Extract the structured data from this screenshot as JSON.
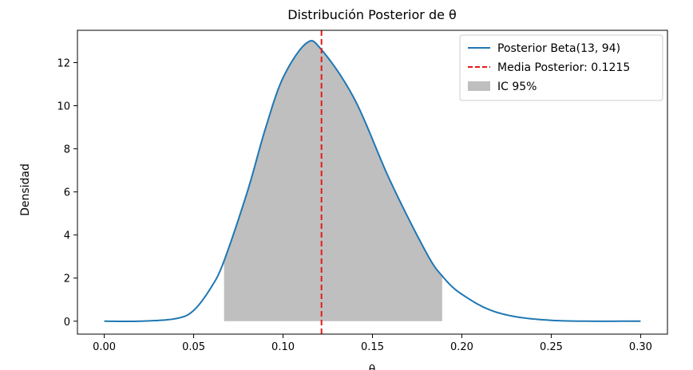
{
  "chart_data": {
    "type": "line",
    "title": "Distribución Posterior de θ",
    "xlabel": "θ",
    "ylabel": "Densidad",
    "xlim": [
      -0.015,
      0.315
    ],
    "ylim": [
      -0.6,
      13.5
    ],
    "xticks": [
      0.0,
      0.05,
      0.1,
      0.15,
      0.2,
      0.25,
      0.3
    ],
    "xtick_labels": [
      "0.00",
      "0.05",
      "0.10",
      "0.15",
      "0.20",
      "0.25",
      "0.30"
    ],
    "yticks": [
      0,
      2,
      4,
      6,
      8,
      10,
      12
    ],
    "ytick_labels": [
      "0",
      "2",
      "4",
      "6",
      "8",
      "10",
      "12"
    ],
    "grid": false,
    "legend_position": "top-right",
    "series": [
      {
        "name": "Posterior Beta(13, 94)",
        "kind": "line",
        "color": "#1f77b4",
        "x": [
          0.0,
          0.02,
          0.04,
          0.05,
          0.06,
          0.067,
          0.08,
          0.09,
          0.1,
          0.113,
          0.1215,
          0.14,
          0.16,
          0.18,
          0.189,
          0.2,
          0.22,
          0.25,
          0.3
        ],
        "y": [
          0.0,
          0.0,
          0.12,
          0.5,
          1.6,
          2.8,
          6.0,
          8.9,
          11.3,
          12.9,
          12.6,
          10.3,
          6.5,
          3.2,
          2.1,
          1.25,
          0.4,
          0.04,
          0.0
        ]
      },
      {
        "name": "Media Posterior: 0.1215",
        "kind": "vline",
        "color": "#e41a1c",
        "x": 0.1215
      },
      {
        "name": "IC 95%",
        "kind": "band",
        "color": "#bfbfbf",
        "x_range": [
          0.067,
          0.189
        ]
      }
    ]
  }
}
